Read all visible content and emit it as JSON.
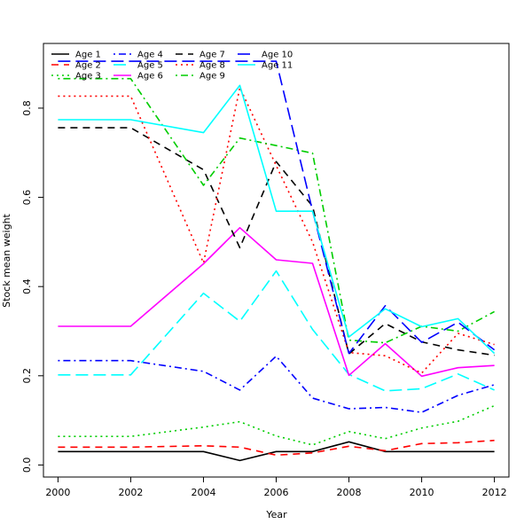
{
  "chart_data": {
    "type": "line",
    "title": "",
    "xlabel": "Year",
    "ylabel": "Stock mean weight",
    "x": [
      2000,
      2002,
      2004,
      2005,
      2006,
      2007,
      2008,
      2009,
      2010,
      2011,
      2012
    ],
    "xlim": [
      1999.6,
      2012.4
    ],
    "ylim": [
      -0.027,
      0.945
    ],
    "x_ticks": [
      2000,
      2002,
      2004,
      2006,
      2008,
      2010,
      2012
    ],
    "y_ticks": [
      0.0,
      0.2,
      0.4,
      0.6,
      0.8
    ],
    "y_tick_labels": [
      "0.0",
      "0.2",
      "0.4",
      "0.6",
      "0.8"
    ],
    "grid": false,
    "legend_position": "top-left",
    "series": [
      {
        "name": "Age 1",
        "color": "#000000",
        "dash": "solid",
        "values": [
          0.03,
          0.03,
          0.03,
          0.01,
          0.03,
          0.03,
          0.052,
          0.03,
          0.03,
          0.03,
          0.03
        ]
      },
      {
        "name": "Age 2",
        "color": "#ff0000",
        "dash": "dashed",
        "values": [
          0.04,
          0.04,
          0.043,
          0.04,
          0.022,
          0.027,
          0.042,
          0.032,
          0.048,
          0.05,
          0.055
        ]
      },
      {
        "name": "Age 3",
        "color": "#00cd00",
        "dash": "dotted",
        "values": [
          0.064,
          0.064,
          0.085,
          0.097,
          0.065,
          0.045,
          0.075,
          0.059,
          0.083,
          0.098,
          0.133
        ]
      },
      {
        "name": "Age 4",
        "color": "#0000ff",
        "dash": "dotdash",
        "values": [
          0.234,
          0.234,
          0.21,
          0.168,
          0.244,
          0.15,
          0.126,
          0.129,
          0.118,
          0.156,
          0.18
        ]
      },
      {
        "name": "Age 5",
        "color": "#00ffff",
        "dash": "longdash",
        "values": [
          0.202,
          0.202,
          0.385,
          0.322,
          0.435,
          0.304,
          0.203,
          0.166,
          0.171,
          0.204,
          0.168
        ]
      },
      {
        "name": "Age 6",
        "color": "#ff00ff",
        "dash": "solid",
        "values": [
          0.311,
          0.311,
          0.451,
          0.532,
          0.46,
          0.452,
          0.201,
          0.272,
          0.199,
          0.218,
          0.223
        ]
      },
      {
        "name": "Age 7",
        "color": "#000000",
        "dash": "dashed",
        "values": [
          0.756,
          0.756,
          0.662,
          0.487,
          0.68,
          0.58,
          0.249,
          0.317,
          0.276,
          0.258,
          0.246
        ]
      },
      {
        "name": "Age 8",
        "color": "#ff0000",
        "dash": "dotted",
        "values": [
          0.827,
          0.827,
          0.453,
          0.846,
          0.671,
          0.5,
          0.252,
          0.245,
          0.206,
          0.295,
          0.27
        ]
      },
      {
        "name": "Age 9",
        "color": "#00cd00",
        "dash": "dotdash",
        "values": [
          0.866,
          0.866,
          0.627,
          0.733,
          0.716,
          0.699,
          0.28,
          0.274,
          0.311,
          0.3,
          0.344
        ]
      },
      {
        "name": "Age 10",
        "color": "#0000ff",
        "dash": "longdash",
        "values": [
          0.905,
          0.905,
          0.905,
          0.905,
          0.905,
          0.57,
          0.25,
          0.357,
          0.275,
          0.32,
          0.258
        ]
      },
      {
        "name": "Age 11",
        "color": "#00ffff",
        "dash": "solid",
        "values": [
          0.774,
          0.774,
          0.745,
          0.851,
          0.569,
          0.569,
          0.287,
          0.35,
          0.31,
          0.328,
          0.25
        ]
      }
    ]
  }
}
